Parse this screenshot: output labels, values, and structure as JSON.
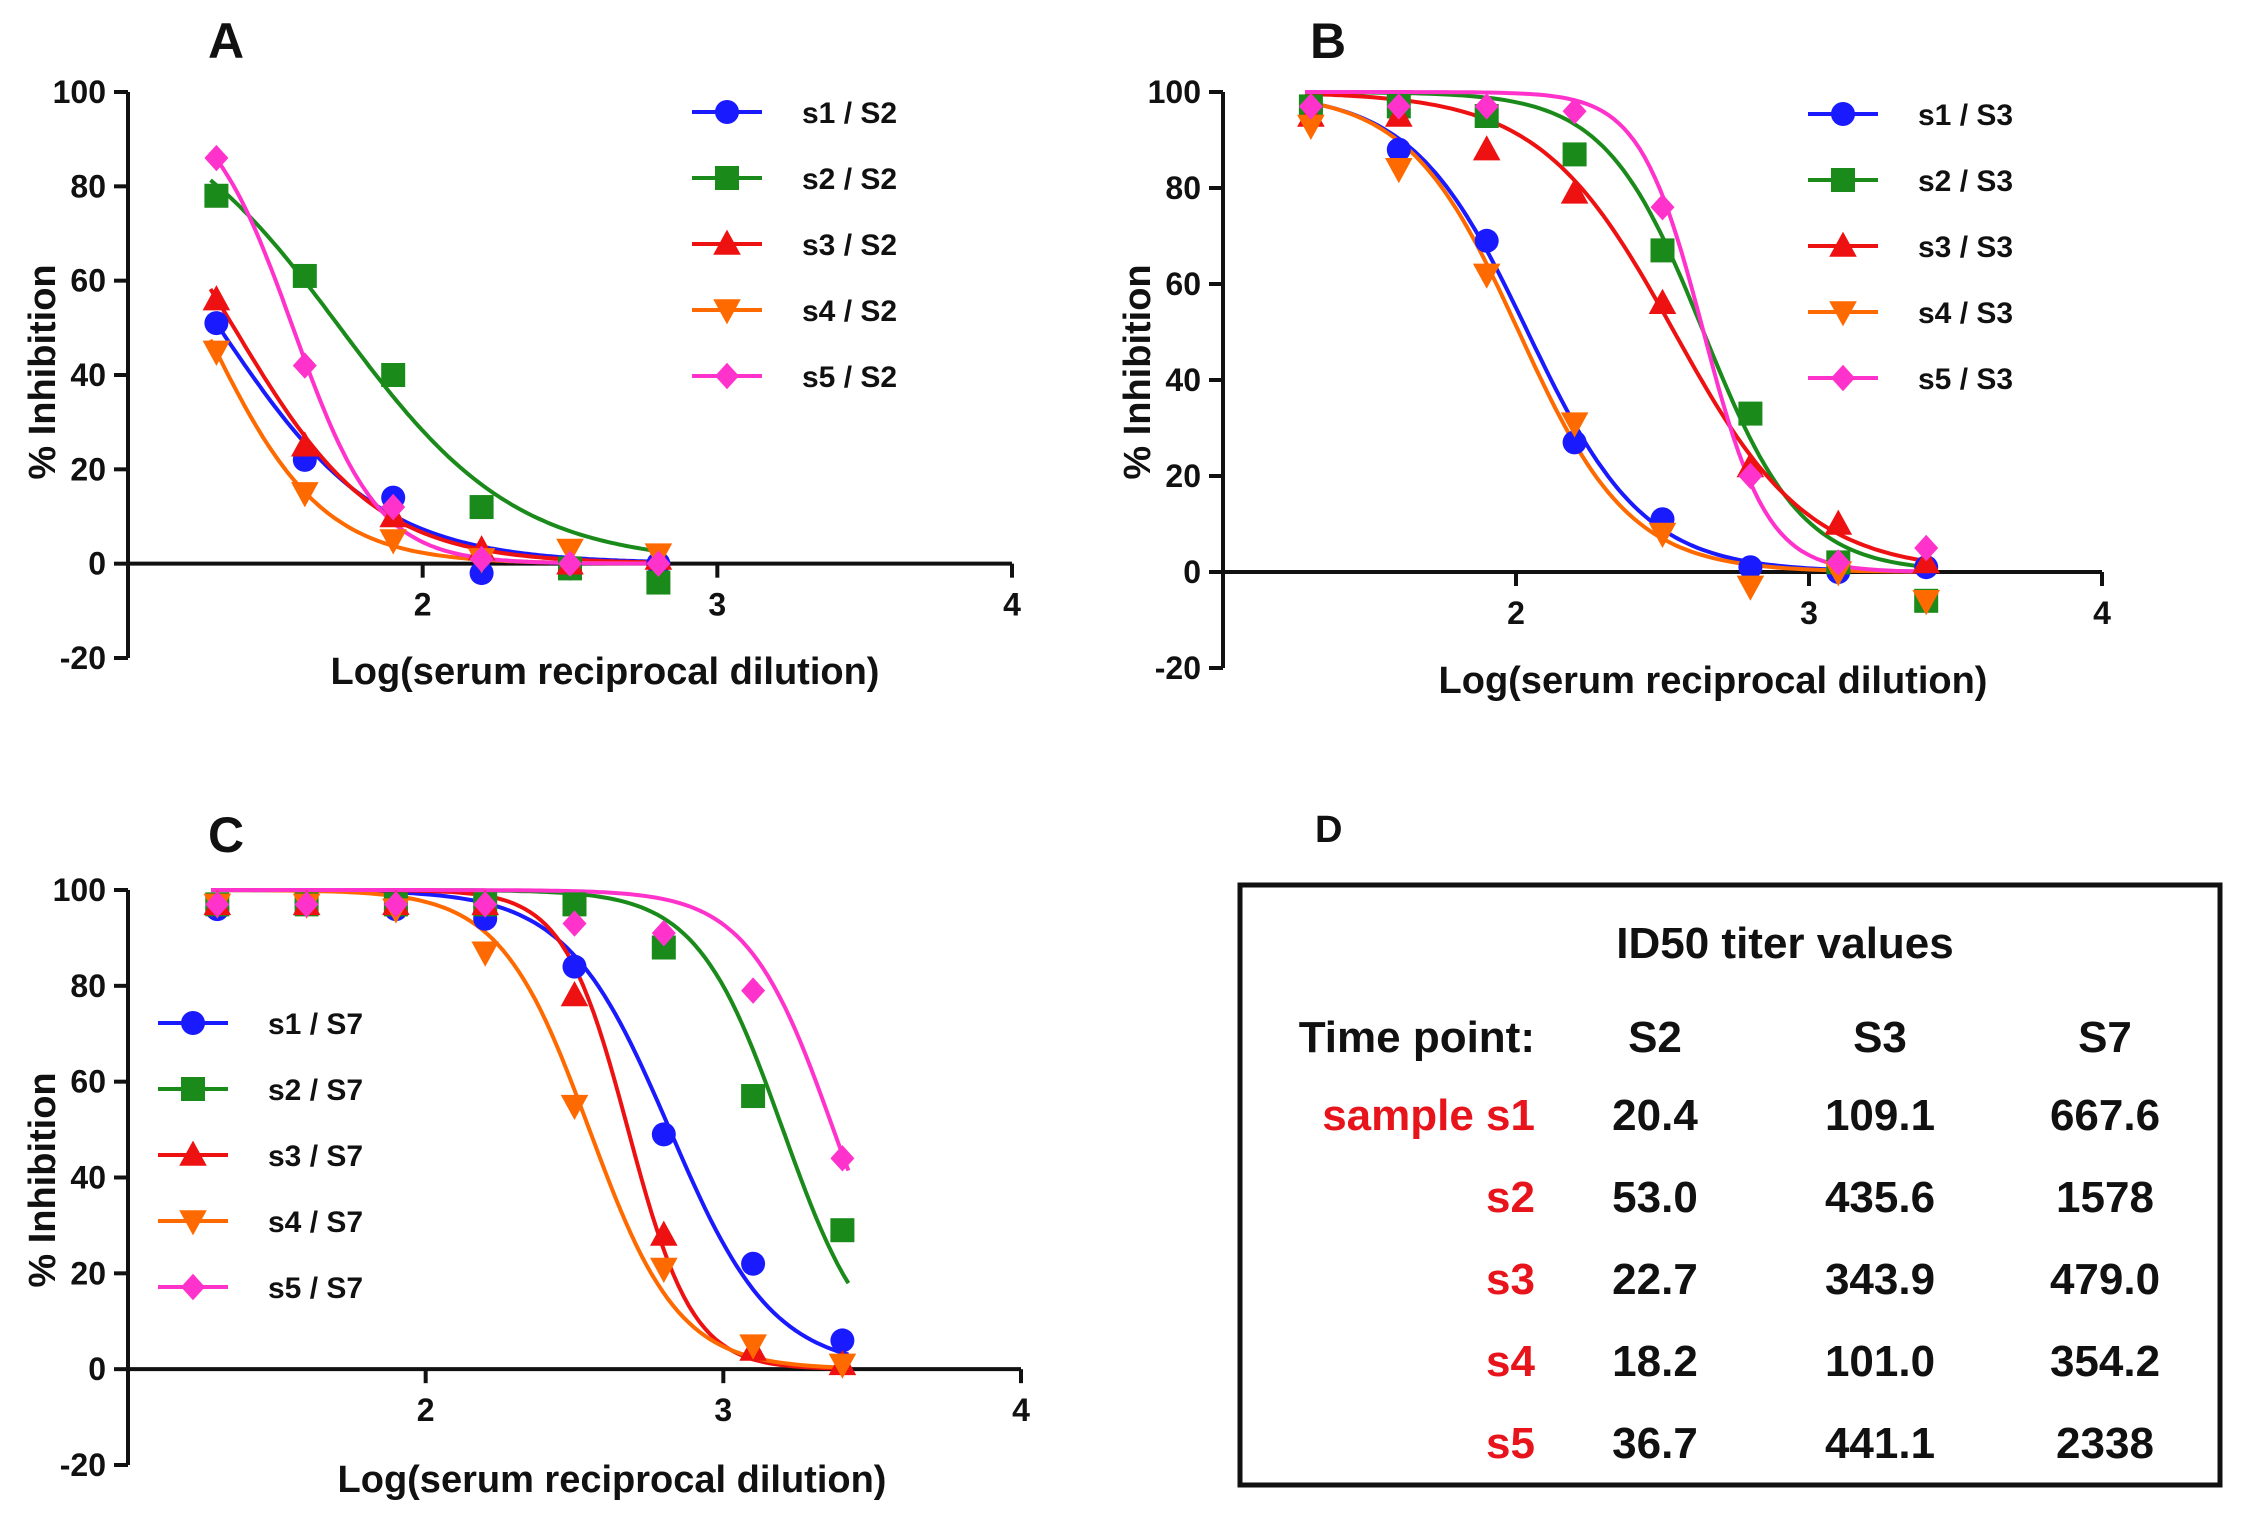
{
  "chart_data": [
    {
      "type": "line",
      "panel": "A",
      "xlabel": "Log(serum reciprocal dilution)",
      "ylabel": "% Inhibition",
      "xlim": [
        1,
        4
      ],
      "ylim": [
        -20,
        100
      ],
      "xticks": [
        "2",
        "3",
        "4"
      ],
      "yticks": [
        "100",
        "80",
        "60",
        "40",
        "20",
        "0",
        "-20"
      ],
      "legend_position": "top-right",
      "x": [
        1.3,
        1.6,
        1.9,
        2.2,
        2.5,
        2.8
      ],
      "series": [
        {
          "name": "s1 / S2",
          "color": "#1a1aff",
          "marker": "circle",
          "values": [
            51,
            22,
            14,
            -2,
            -1,
            0
          ],
          "fit": {
            "top": 100,
            "bottom": 0,
            "logIC50": 1.31,
            "hill": 1.6
          }
        },
        {
          "name": "s2 / S2",
          "color": "#1a8a1a",
          "marker": "square",
          "values": [
            78,
            61,
            40,
            12,
            -1,
            -4
          ],
          "fit": {
            "top": 100,
            "bottom": 0,
            "logIC50": 1.72,
            "hill": 1.45
          }
        },
        {
          "name": "s3 / S2",
          "color": "#ee1111",
          "marker": "triangle-up",
          "values": [
            56,
            25,
            10,
            3,
            0,
            1
          ],
          "fit": {
            "top": 100,
            "bottom": 0,
            "logIC50": 1.36,
            "hill": 1.8
          }
        },
        {
          "name": "s4 / S2",
          "color": "#ff6a00",
          "marker": "triangle-down",
          "values": [
            45,
            15,
            5,
            1,
            3,
            2
          ],
          "fit": {
            "top": 100,
            "bottom": 0,
            "logIC50": 1.26,
            "hill": 2.2
          }
        },
        {
          "name": "s5 / S2",
          "color": "#ff33cc",
          "marker": "diamond",
          "values": [
            86,
            42,
            12,
            1,
            0,
            0
          ],
          "fit": {
            "top": 100,
            "bottom": 0,
            "logIC50": 1.56,
            "hill": 3.0
          }
        }
      ]
    },
    {
      "type": "line",
      "panel": "B",
      "xlabel": "Log(serum reciprocal dilution)",
      "ylabel": "% Inhibition",
      "xlim": [
        1,
        4
      ],
      "ylim": [
        -20,
        100
      ],
      "xticks": [
        "2",
        "3",
        "4"
      ],
      "yticks": [
        "100",
        "80",
        "60",
        "40",
        "20",
        "0",
        "-20"
      ],
      "legend_position": "top-right",
      "x": [
        1.3,
        1.6,
        1.9,
        2.2,
        2.5,
        2.8,
        3.1,
        3.4
      ],
      "series": [
        {
          "name": "s1 / S3",
          "color": "#1a1aff",
          "marker": "circle",
          "values": [
            96,
            88,
            69,
            27,
            11,
            1,
            0,
            1
          ],
          "fit": {
            "top": 100,
            "bottom": 0,
            "logIC50": 2.04,
            "hill": 2.2
          }
        },
        {
          "name": "s2 / S3",
          "color": "#1a8a1a",
          "marker": "square",
          "values": [
            97,
            97,
            95,
            87,
            67,
            33,
            2,
            -6
          ],
          "fit": {
            "top": 100,
            "bottom": 0,
            "logIC50": 2.64,
            "hill": 2.6
          }
        },
        {
          "name": "s3 / S3",
          "color": "#ee1111",
          "marker": "triangle-up",
          "values": [
            95,
            95,
            88,
            79,
            56,
            22,
            10,
            2
          ],
          "fit": {
            "top": 100,
            "bottom": 0,
            "logIC50": 2.54,
            "hill": 1.9
          }
        },
        {
          "name": "s4 / S3",
          "color": "#ff6a00",
          "marker": "triangle-down",
          "values": [
            93,
            84,
            62,
            31,
            8,
            -3,
            0,
            -6
          ],
          "fit": {
            "top": 100,
            "bottom": 0,
            "logIC50": 2.01,
            "hill": 2.3
          }
        },
        {
          "name": "s5 / S3",
          "color": "#ff33cc",
          "marker": "diamond",
          "values": [
            97,
            97,
            97,
            96,
            76,
            20,
            2,
            5
          ],
          "fit": {
            "top": 100,
            "bottom": 0,
            "logIC50": 2.64,
            "hill": 4.0
          }
        }
      ]
    },
    {
      "type": "line",
      "panel": "C",
      "xlabel": "Log(serum reciprocal dilution)",
      "ylabel": "% Inhibition",
      "xlim": [
        1,
        4
      ],
      "ylim": [
        -20,
        100
      ],
      "xticks": [
        "2",
        "3",
        "4"
      ],
      "yticks": [
        "100",
        "80",
        "60",
        "40",
        "20",
        "0",
        "-20"
      ],
      "legend_position": "middle-left",
      "x": [
        1.3,
        1.6,
        1.9,
        2.2,
        2.5,
        2.8,
        3.1,
        3.4
      ],
      "series": [
        {
          "name": "s1 / S7",
          "color": "#1a1aff",
          "marker": "circle",
          "values": [
            96,
            97,
            96,
            94,
            84,
            49,
            22,
            6
          ],
          "fit": {
            "top": 100,
            "bottom": 0,
            "logIC50": 2.82,
            "hill": 2.5
          }
        },
        {
          "name": "s2 / S7",
          "color": "#1a8a1a",
          "marker": "square",
          "values": [
            97,
            97,
            97,
            97,
            97,
            88,
            57,
            29
          ],
          "fit": {
            "top": 100,
            "bottom": 0,
            "logIC50": 3.2,
            "hill": 3.0
          }
        },
        {
          "name": "s3 / S7",
          "color": "#ee1111",
          "marker": "triangle-up",
          "values": [
            97,
            97,
            97,
            97,
            78,
            28,
            4,
            1
          ],
          "fit": {
            "top": 100,
            "bottom": 0,
            "logIC50": 2.68,
            "hill": 4.0
          }
        },
        {
          "name": "s4 / S7",
          "color": "#ff6a00",
          "marker": "triangle-down",
          "values": [
            97,
            97,
            96,
            87,
            55,
            21,
            5,
            1
          ],
          "fit": {
            "top": 100,
            "bottom": 0,
            "logIC50": 2.55,
            "hill": 2.9
          }
        },
        {
          "name": "s5 / S7",
          "color": "#ff33cc",
          "marker": "diamond",
          "values": [
            97,
            97,
            97,
            97,
            93,
            91,
            79,
            44
          ],
          "fit": {
            "top": 100,
            "bottom": 0,
            "logIC50": 3.37,
            "hill": 3.0
          }
        }
      ]
    },
    {
      "type": "table",
      "panel": "D",
      "title": "ID50 titer values",
      "corner_header": "Time point:",
      "columns": [
        "S2",
        "S3",
        "S7"
      ],
      "rows": [
        {
          "label": "sample s1",
          "values": [
            "20.4",
            "109.1",
            "667.6"
          ]
        },
        {
          "label": "s2",
          "values": [
            "53.0",
            "435.6",
            "1578"
          ]
        },
        {
          "label": "s3",
          "values": [
            "22.7",
            "343.9",
            "479.0"
          ]
        },
        {
          "label": "s4",
          "values": [
            "18.2",
            "101.0",
            "354.2"
          ]
        },
        {
          "label": "s5",
          "values": [
            "36.7",
            "441.1",
            "2338"
          ]
        }
      ]
    }
  ]
}
